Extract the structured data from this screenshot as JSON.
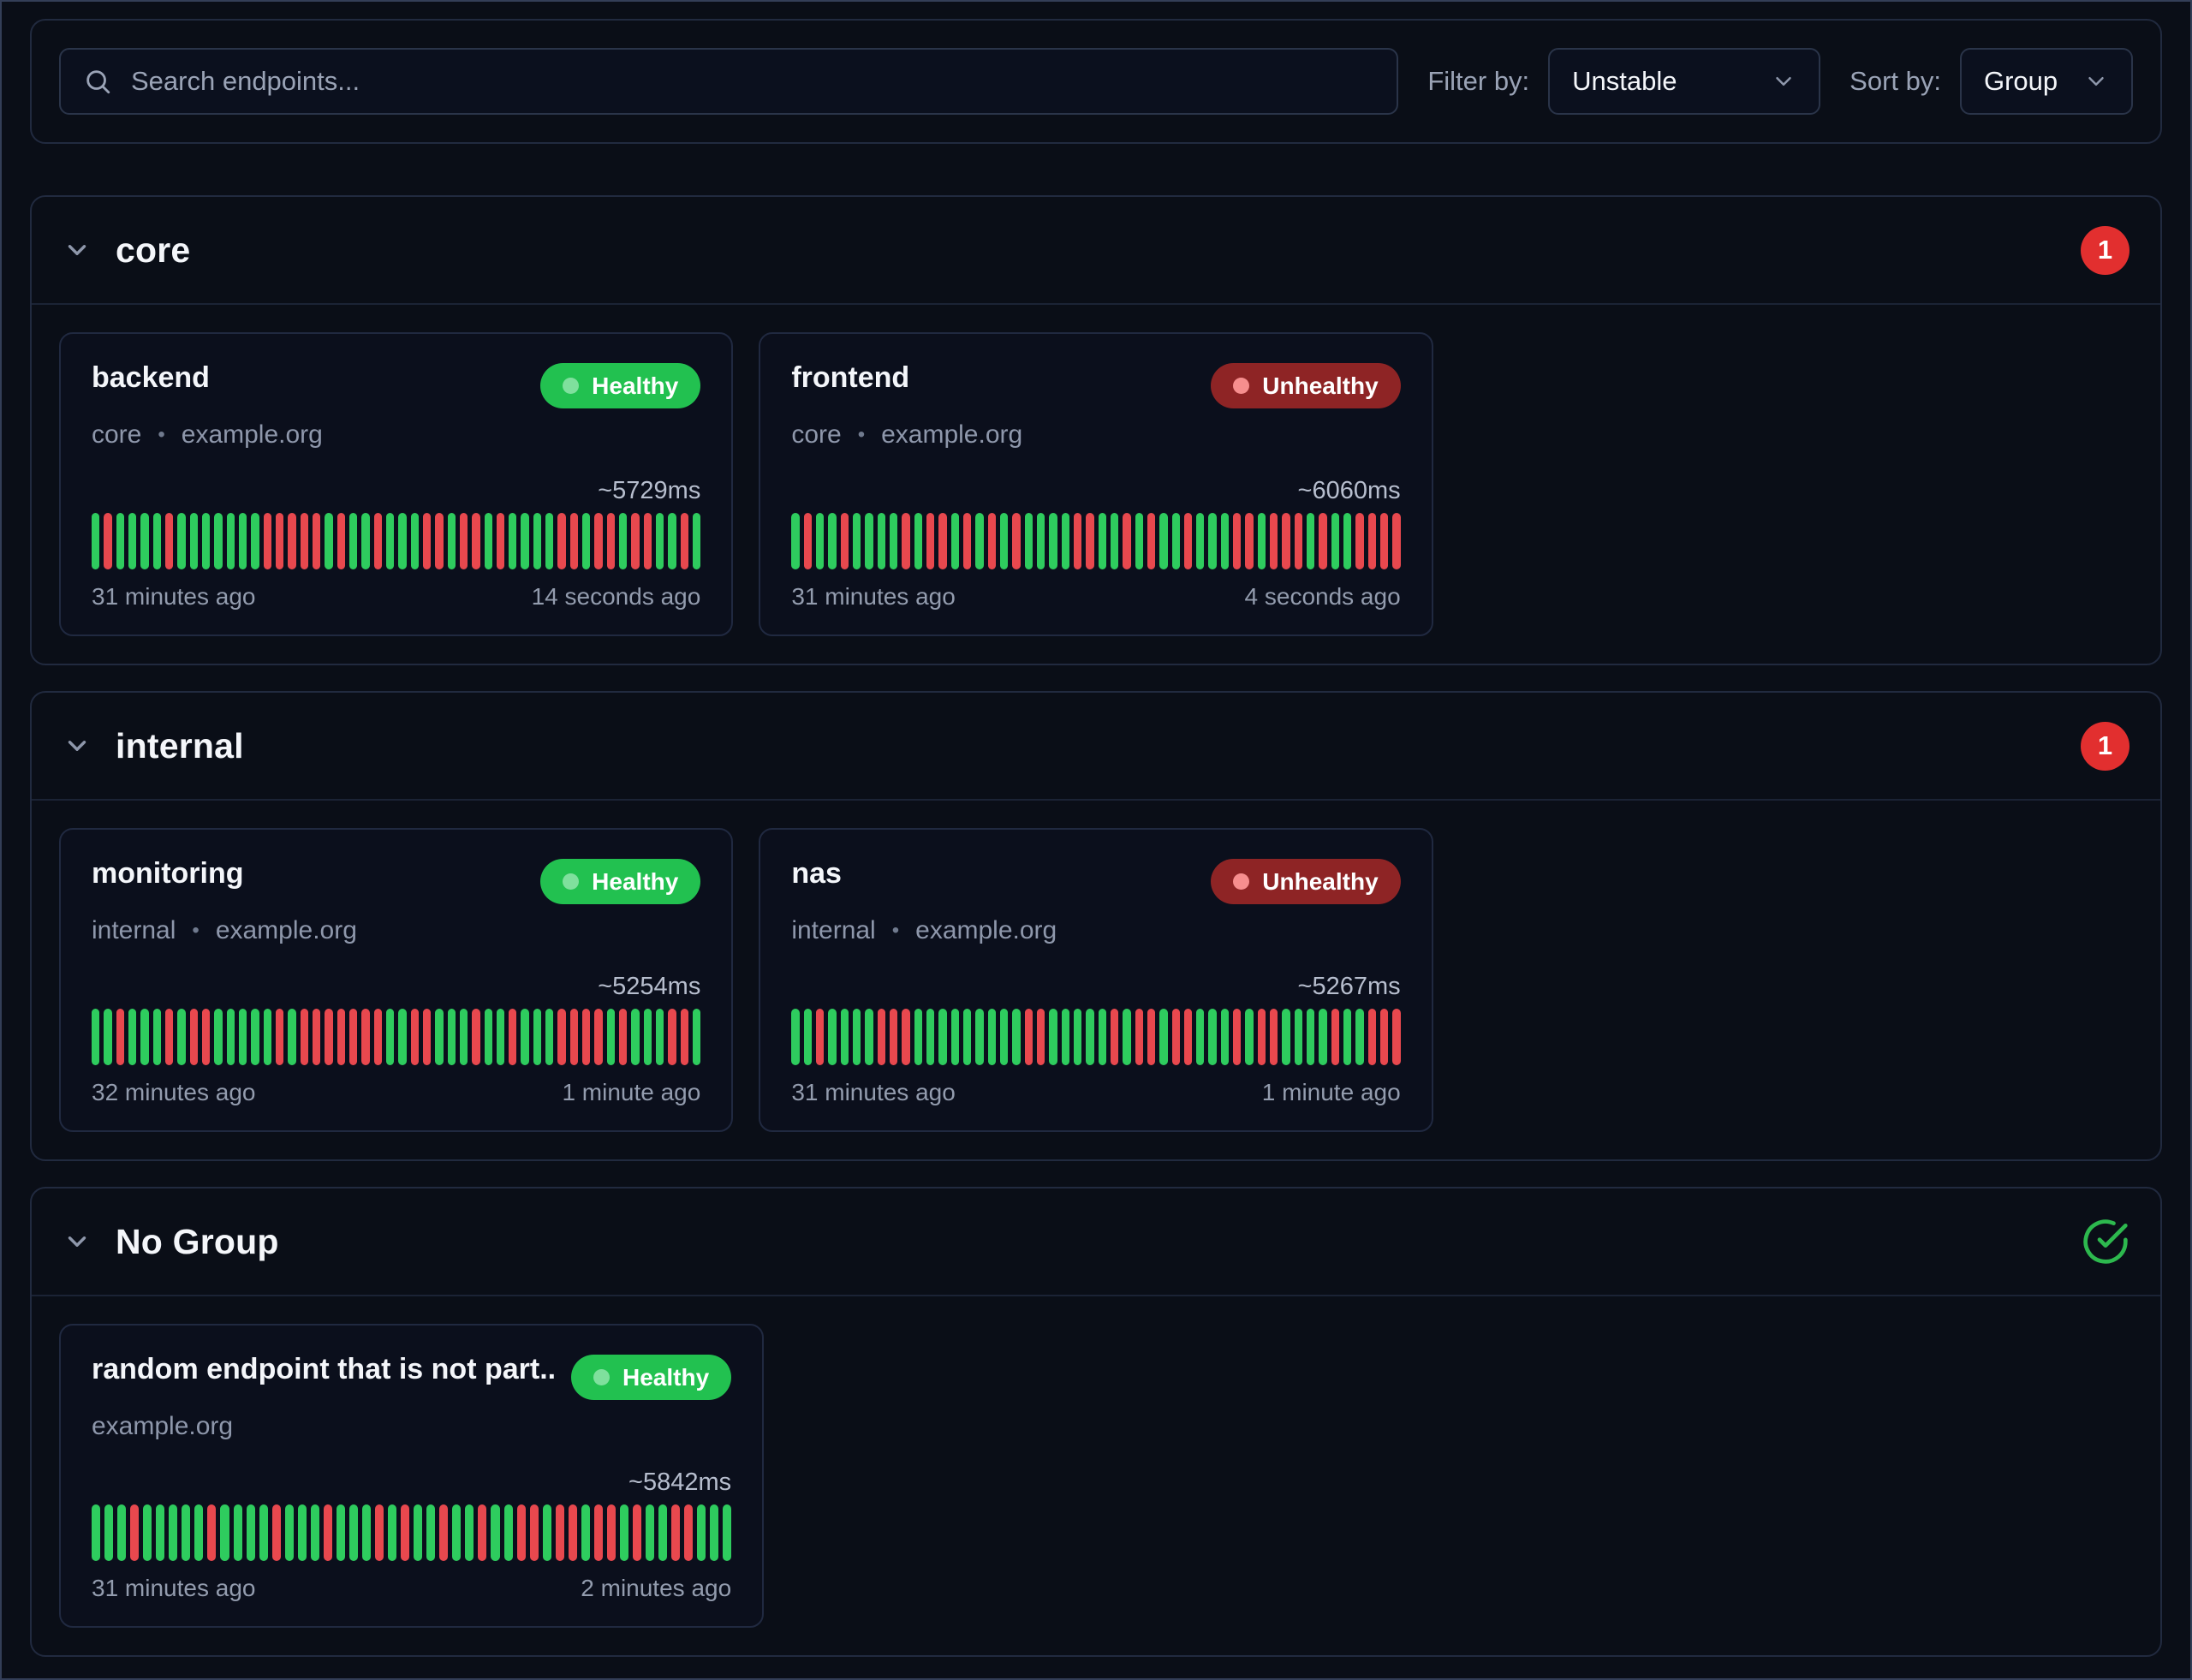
{
  "toolbar": {
    "search_placeholder": "Search endpoints...",
    "filter_label": "Filter by:",
    "filter_value": "Unstable",
    "sort_label": "Sort by:",
    "sort_value": "Group"
  },
  "separator": "•",
  "colors": {
    "healthy_badge": "#22c150",
    "unhealthy_badge": "#8e2425",
    "bar_success": "#2ecc5e",
    "bar_failure": "#e8484e",
    "count_badge": "#e22f2f",
    "ok_check": "#2db84e"
  },
  "groups": [
    {
      "name": "core",
      "badge": "1",
      "endpoints": [
        {
          "name": "backend",
          "group": "core",
          "host": "example.org",
          "status": "Healthy",
          "response_time": "~5729ms",
          "oldest": "31 minutes ago",
          "newest": "14 seconds ago",
          "history": "GRGGGGRGGGGGGGRRRRRGRGGRGGGRRGRRGRGGGGRRGRRGRRGGRG"
        },
        {
          "name": "frontend",
          "group": "core",
          "host": "example.org",
          "status": "Unhealthy",
          "response_time": "~6060ms",
          "oldest": "31 minutes ago",
          "newest": "4 seconds ago",
          "history": "GRGGRGGGGRGRRGRGRGRGGGGRRGGRGRGGRGGGRRGRRRGRGGRRRR"
        }
      ]
    },
    {
      "name": "internal",
      "badge": "1",
      "endpoints": [
        {
          "name": "monitoring",
          "group": "internal",
          "host": "example.org",
          "status": "Healthy",
          "response_time": "~5254ms",
          "oldest": "32 minutes ago",
          "newest": "1 minute ago",
          "history": "GGRGGGRGRRGGGGGRGRRRRRRRGGRRGGGRGGRGGGRRRRGRGGGRRG"
        },
        {
          "name": "nas",
          "group": "internal",
          "host": "example.org",
          "status": "Unhealthy",
          "response_time": "~5267ms",
          "oldest": "31 minutes ago",
          "newest": "1 minute ago",
          "history": "GGRGGGGRRRGGGGGGGGGRRGGGGGRGRRGRRGGGRGRRGGGGRGGRRR"
        }
      ]
    },
    {
      "name": "No Group",
      "badge": "",
      "endpoints": [
        {
          "name": "random endpoint that is not part...",
          "group": "",
          "host": "example.org",
          "status": "Healthy",
          "response_time": "~5842ms",
          "oldest": "31 minutes ago",
          "newest": "2 minutes ago",
          "history": "GGGRGGGGGRGGGGRGGGRGGGRGRGGRGGRGGRRGRRGRRGRGGRRGGG"
        }
      ]
    }
  ]
}
